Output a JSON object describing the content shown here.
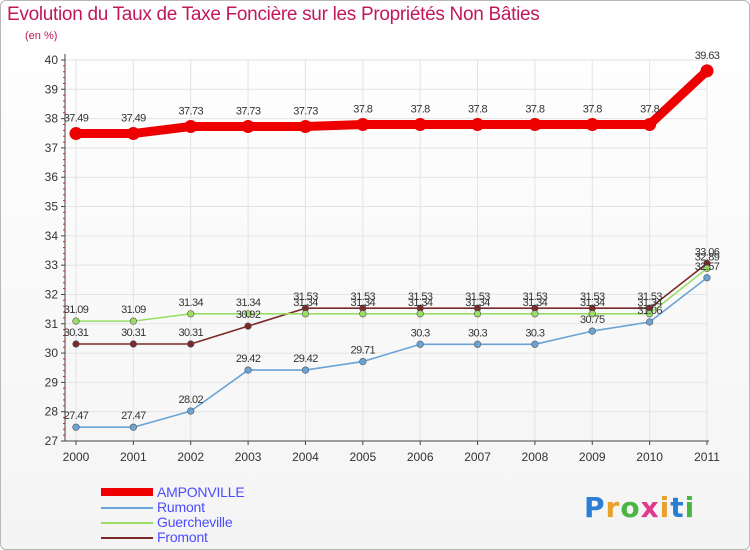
{
  "chart_data": {
    "type": "line",
    "title": "Evolution du Taux de Taxe Foncière sur les Propriétés Non Bâties",
    "subtitle": "(en %)",
    "categories": [
      "2000",
      "2001",
      "2002",
      "2003",
      "2004",
      "2005",
      "2006",
      "2007",
      "2008",
      "2009",
      "2010",
      "2011"
    ],
    "ylim": [
      27,
      40
    ],
    "yticks": [
      27,
      28,
      29,
      30,
      31,
      32,
      33,
      34,
      35,
      36,
      37,
      38,
      39,
      40
    ],
    "series": [
      {
        "name": "AMPONVILLE",
        "color": "#ee0000",
        "values": [
          37.49,
          37.49,
          37.73,
          37.73,
          37.73,
          37.8,
          37.8,
          37.8,
          37.8,
          37.8,
          37.8,
          39.63
        ],
        "labels": [
          "37.49",
          "37.49",
          "37.73",
          "37.73",
          "37.73",
          "37.8",
          "37.8",
          "37.8",
          "37.8",
          "37.8",
          "37.8",
          "39.63"
        ]
      },
      {
        "name": "Rumont",
        "color": "#6aa3d5",
        "values": [
          27.47,
          27.47,
          28.02,
          29.42,
          29.42,
          29.71,
          30.3,
          30.3,
          30.3,
          30.75,
          31.06,
          32.57
        ],
        "labels": [
          "27.47",
          "27.47",
          "28.02",
          "29.42",
          "29.42",
          "29.71",
          "30.3",
          "30.3",
          "30.3",
          "30.75",
          "31.06",
          "32.57"
        ]
      },
      {
        "name": "Guercheville",
        "color": "#99dd66",
        "values": [
          31.09,
          31.09,
          31.34,
          31.34,
          31.34,
          31.34,
          31.34,
          31.34,
          31.34,
          31.34,
          31.34,
          32.89
        ],
        "labels": [
          "31.09",
          "31.09",
          "31.34",
          "31.34",
          "31.34",
          "31.34",
          "31.34",
          "31.34",
          "31.34",
          "31.34",
          "31.34",
          "32.89"
        ]
      },
      {
        "name": "Fromont",
        "color": "#7a2a2a",
        "values": [
          30.31,
          30.31,
          30.31,
          30.92,
          31.53,
          31.53,
          31.53,
          31.53,
          31.53,
          31.53,
          31.53,
          33.06
        ],
        "labels": [
          "30.31",
          "30.31",
          "30.31",
          "30.92",
          "31.53",
          "31.53",
          "31.53",
          "31.53",
          "31.53",
          "31.53",
          "31.53",
          "33.06"
        ]
      }
    ]
  },
  "brand": {
    "letters": [
      "P",
      "r",
      "o",
      "x",
      "i",
      "t",
      "i"
    ],
    "colors": [
      "#2a7fd4",
      "#e8a12b",
      "#4bb543",
      "#e03a8f",
      "#e8a12b",
      "#2a7fd4",
      "#4bb543"
    ]
  }
}
